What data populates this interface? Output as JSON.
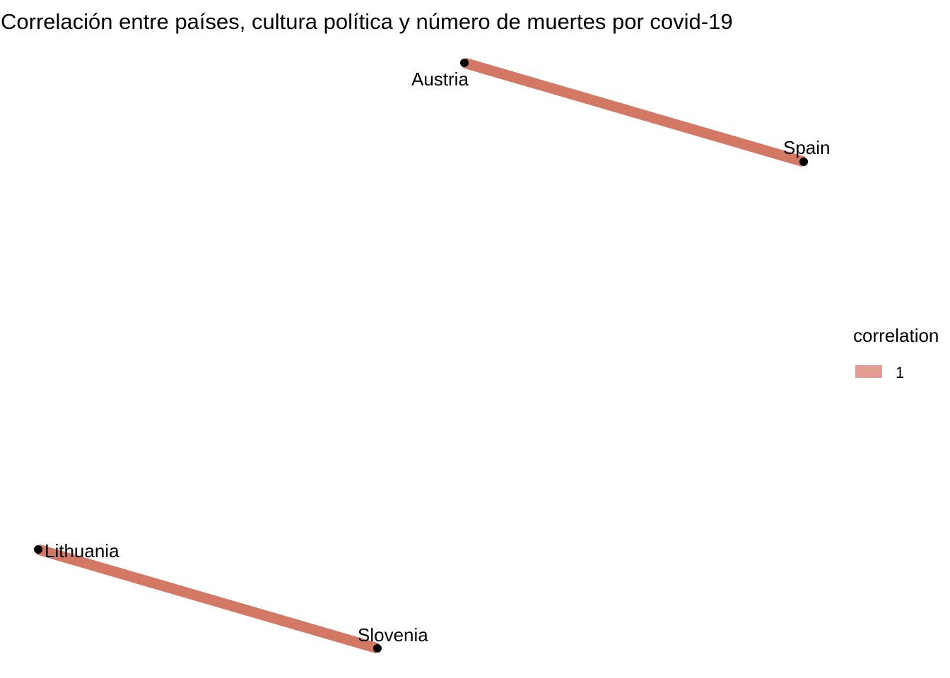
{
  "title": "Correlación entre países, cultura política y número de muertes por covid-19",
  "nodes": [
    {
      "id": "austria",
      "label": "Austria"
    },
    {
      "id": "spain",
      "label": "Spain"
    },
    {
      "id": "lithuania",
      "label": "Lithuania"
    },
    {
      "id": "slovenia",
      "label": "Slovenia"
    }
  ],
  "edges": [
    {
      "from": "Austria",
      "to": "Spain",
      "correlation": 1
    },
    {
      "from": "Lithuania",
      "to": "Slovenia",
      "correlation": 1
    }
  ],
  "legend": {
    "title": "correlation",
    "items": [
      {
        "label": "1",
        "color": "#e29c93"
      }
    ]
  },
  "colors": {
    "edge": "#d47866",
    "node": "#000000"
  }
}
